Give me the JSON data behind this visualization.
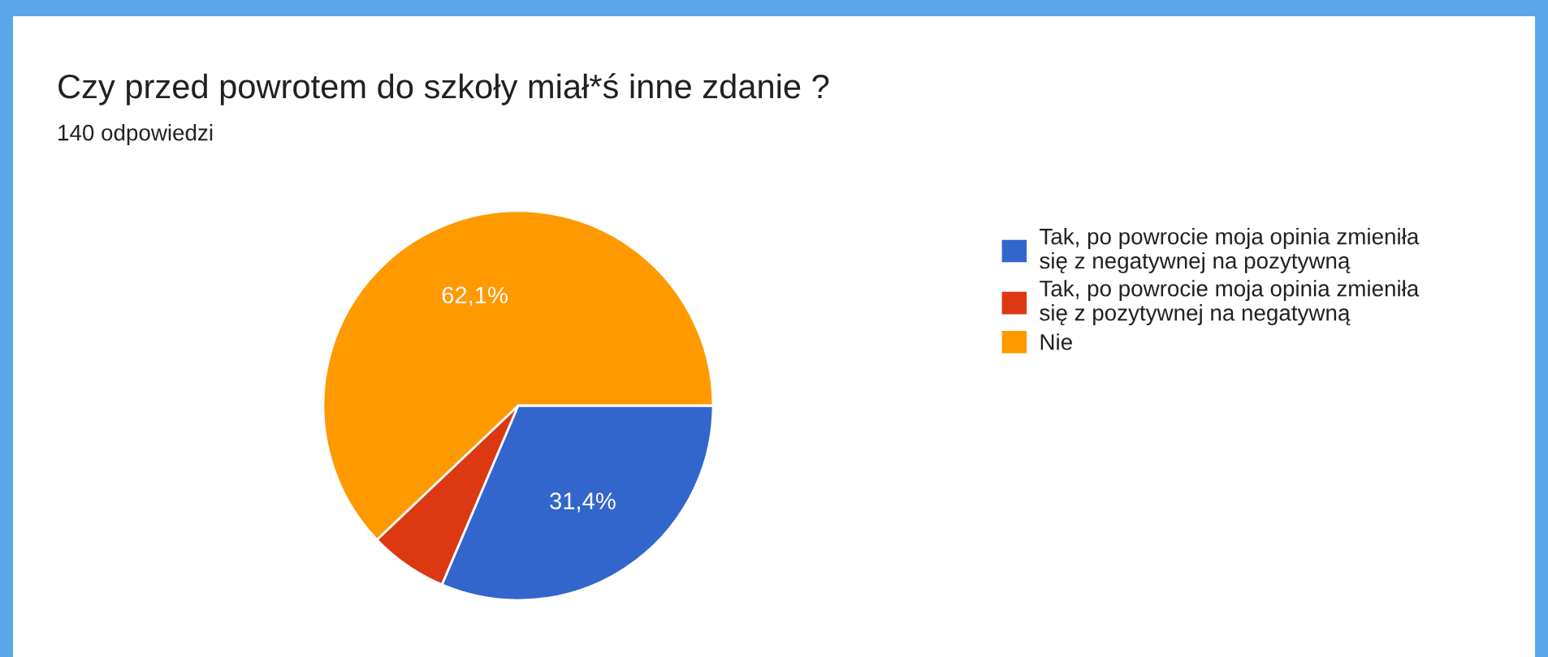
{
  "chart_data": {
    "type": "pie",
    "title": "Czy przed powrotem do szkoły miał*ś inne zdanie ?",
    "subtitle": "140 odpowiedzi",
    "categories": [
      "Tak, po powrocie moja opinia zmieniła się z negatywnej na pozytywną",
      "Tak, po powrocie moja opinia zmieniła się z pozytywnej na negatywną",
      "Nie"
    ],
    "values": [
      31.4,
      6.5,
      62.1
    ],
    "colors": [
      "#3366cc",
      "#dc3912",
      "#ff9900"
    ],
    "value_labels": [
      "31,4%",
      null,
      "62,1%"
    ],
    "legend": "right"
  }
}
